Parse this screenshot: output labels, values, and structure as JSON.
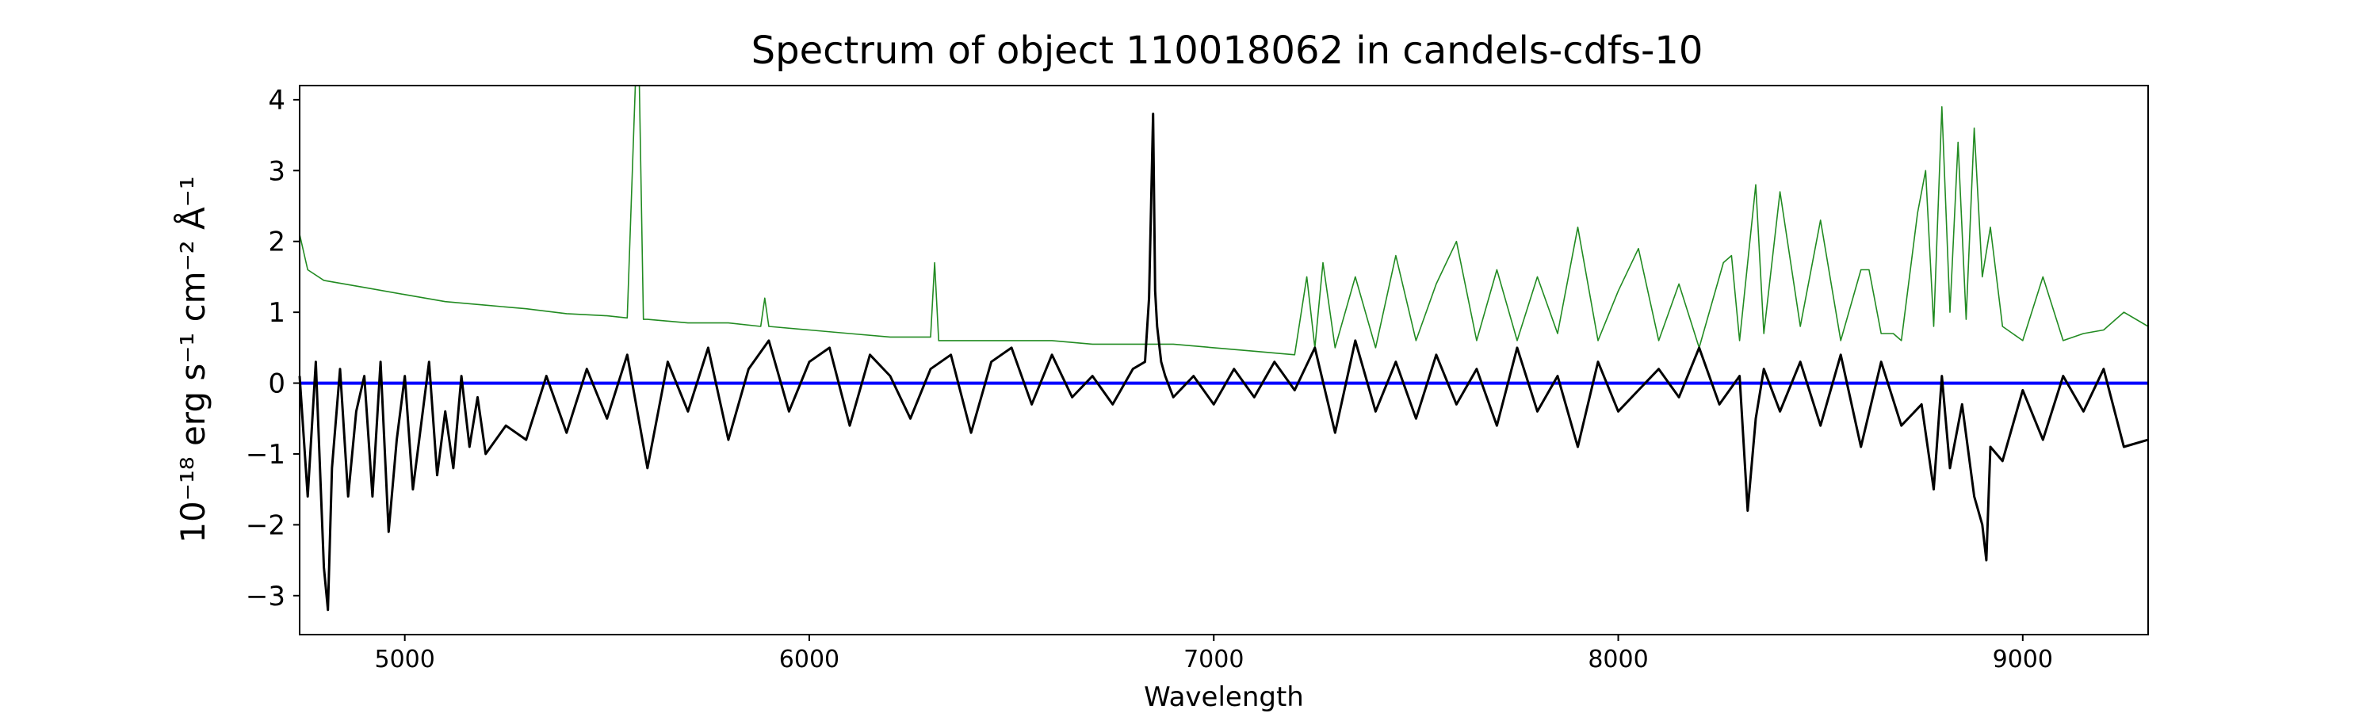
{
  "chart_data": {
    "type": "line",
    "title": "Spectrum of object 110018062 in candels-cdfs-10",
    "xlabel": "Wavelength",
    "ylabel": "10⁻¹⁸ erg s⁻¹ cm⁻² Å⁻¹",
    "xlim": [
      4740,
      9310
    ],
    "ylim": [
      -3.55,
      4.2
    ],
    "x_ticks": [
      5000,
      6000,
      7000,
      8000,
      9000
    ],
    "y_ticks": [
      -3,
      -2,
      -1,
      0,
      1,
      2,
      3,
      4
    ],
    "grid": false,
    "legend": "none",
    "series": [
      {
        "role": "flux",
        "color": "#000000",
        "x": [
          4740,
          4760,
          4780,
          4800,
          4810,
          4820,
          4840,
          4860,
          4880,
          4900,
          4920,
          4940,
          4960,
          4980,
          5000,
          5020,
          5040,
          5060,
          5080,
          5100,
          5120,
          5140,
          5160,
          5180,
          5200,
          5250,
          5300,
          5350,
          5400,
          5450,
          5500,
          5550,
          5600,
          5650,
          5700,
          5750,
          5800,
          5850,
          5900,
          5950,
          6000,
          6050,
          6100,
          6150,
          6200,
          6250,
          6300,
          6350,
          6400,
          6450,
          6500,
          6550,
          6600,
          6650,
          6700,
          6750,
          6800,
          6830,
          6840,
          6850,
          6855,
          6860,
          6870,
          6880,
          6900,
          6950,
          7000,
          7050,
          7100,
          7150,
          7200,
          7250,
          7300,
          7350,
          7400,
          7450,
          7500,
          7550,
          7600,
          7650,
          7700,
          7750,
          7800,
          7850,
          7900,
          7950,
          8000,
          8050,
          8100,
          8150,
          8200,
          8250,
          8300,
          8320,
          8340,
          8360,
          8400,
          8450,
          8500,
          8550,
          8600,
          8650,
          8700,
          8750,
          8780,
          8800,
          8820,
          8850,
          8880,
          8900,
          8910,
          8920,
          8950,
          9000,
          9050,
          9100,
          9150,
          9200,
          9250,
          9310
        ],
        "y": [
          0.1,
          -1.6,
          0.3,
          -2.6,
          -3.2,
          -1.2,
          0.2,
          -1.6,
          -0.4,
          0.1,
          -1.6,
          0.3,
          -2.1,
          -0.8,
          0.1,
          -1.5,
          -0.6,
          0.3,
          -1.3,
          -0.4,
          -1.2,
          0.1,
          -0.9,
          -0.2,
          -1.0,
          -0.6,
          -0.8,
          0.1,
          -0.7,
          0.2,
          -0.5,
          0.4,
          -1.2,
          0.3,
          -0.4,
          0.5,
          -0.8,
          0.2,
          0.6,
          -0.4,
          0.3,
          0.5,
          -0.6,
          0.4,
          0.1,
          -0.5,
          0.2,
          0.4,
          -0.7,
          0.3,
          0.5,
          -0.3,
          0.4,
          -0.2,
          0.1,
          -0.3,
          0.2,
          0.3,
          1.2,
          3.8,
          1.3,
          0.8,
          0.3,
          0.1,
          -0.2,
          0.1,
          -0.3,
          0.2,
          -0.2,
          0.3,
          -0.1,
          0.5,
          -0.7,
          0.6,
          -0.4,
          0.3,
          -0.5,
          0.4,
          -0.3,
          0.2,
          -0.6,
          0.5,
          -0.4,
          0.1,
          -0.9,
          0.3,
          -0.4,
          -0.1,
          0.2,
          -0.2,
          0.5,
          -0.3,
          0.1,
          -1.8,
          -0.5,
          0.2,
          -0.4,
          0.3,
          -0.6,
          0.4,
          -0.9,
          0.3,
          -0.6,
          -0.3,
          -1.5,
          0.1,
          -1.2,
          -0.3,
          -1.6,
          -2.0,
          -2.5,
          -0.9,
          -1.1,
          -0.1,
          -0.8,
          0.1,
          -0.4,
          0.2,
          -0.9,
          -0.8
        ]
      },
      {
        "role": "error",
        "color": "#228b22",
        "x": [
          4740,
          4760,
          4800,
          4900,
          5000,
          5100,
          5200,
          5300,
          5400,
          5500,
          5550,
          5570,
          5580,
          5590,
          5600,
          5700,
          5800,
          5880,
          5890,
          5900,
          6000,
          6100,
          6200,
          6300,
          6310,
          6320,
          6400,
          6500,
          6600,
          6700,
          6800,
          6900,
          7000,
          7100,
          7200,
          7230,
          7250,
          7270,
          7300,
          7350,
          7400,
          7450,
          7500,
          7550,
          7600,
          7650,
          7700,
          7750,
          7800,
          7850,
          7900,
          7950,
          8000,
          8050,
          8100,
          8150,
          8200,
          8260,
          8280,
          8300,
          8340,
          8360,
          8400,
          8450,
          8500,
          8550,
          8600,
          8620,
          8650,
          8680,
          8700,
          8740,
          8760,
          8780,
          8800,
          8820,
          8840,
          8860,
          8880,
          8900,
          8920,
          8950,
          9000,
          9050,
          9100,
          9150,
          9200,
          9250,
          9310
        ],
        "y": [
          2.1,
          1.6,
          1.45,
          1.35,
          1.25,
          1.15,
          1.1,
          1.05,
          0.98,
          0.95,
          0.92,
          4.2,
          4.2,
          0.9,
          0.9,
          0.85,
          0.85,
          0.8,
          1.2,
          0.8,
          0.75,
          0.7,
          0.65,
          0.65,
          1.7,
          0.6,
          0.6,
          0.6,
          0.6,
          0.55,
          0.55,
          0.55,
          0.5,
          0.45,
          0.4,
          1.5,
          0.5,
          1.7,
          0.5,
          1.5,
          0.5,
          1.8,
          0.6,
          1.4,
          2.0,
          0.6,
          1.6,
          0.6,
          1.5,
          0.7,
          2.2,
          0.6,
          1.3,
          1.9,
          0.6,
          1.4,
          0.5,
          1.7,
          1.8,
          0.6,
          2.8,
          0.7,
          2.7,
          0.8,
          2.3,
          0.6,
          1.6,
          1.6,
          0.7,
          0.7,
          0.6,
          2.4,
          3.0,
          0.8,
          3.9,
          1.0,
          3.4,
          0.9,
          3.6,
          1.5,
          2.2,
          0.8,
          0.6,
          1.5,
          0.6,
          0.7,
          0.75,
          1.0,
          0.8
        ]
      },
      {
        "role": "zero-line",
        "color": "#0000ff",
        "x": [
          4740,
          9310
        ],
        "y": [
          0,
          0
        ]
      }
    ]
  }
}
